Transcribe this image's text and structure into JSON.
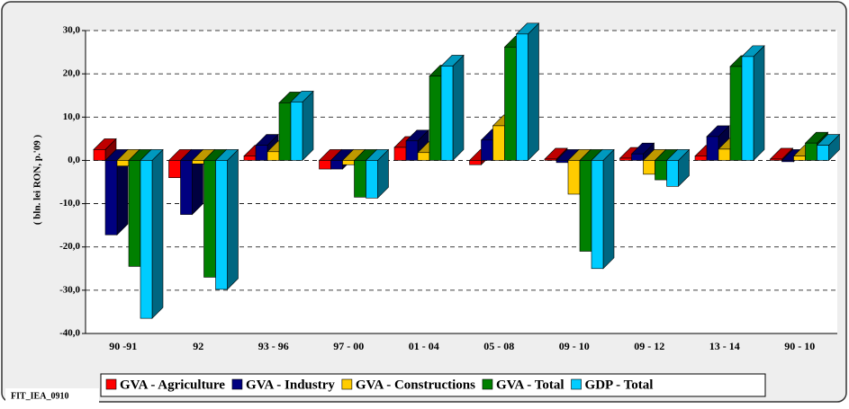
{
  "chart_data": {
    "type": "bar3d",
    "y_label": "( bln. lei RON, p.'09 )",
    "footnote": "FIT_IEA_0910",
    "categories": [
      "90 -91",
      "92",
      "93 - 96",
      "97 - 00",
      "01 - 04",
      "05 - 08",
      "09 - 10",
      "09 - 12",
      "13 - 14",
      "90 - 10"
    ],
    "series": [
      {
        "name": "GVA - Agriculture",
        "color": "#ff0000",
        "values": [
          2.5,
          -4,
          1,
          -2,
          3,
          -1,
          0.3,
          0.5,
          1,
          0.3
        ]
      },
      {
        "name": "GVA - Industry",
        "color": "#000080",
        "values": [
          -17.2,
          -12.5,
          3.5,
          -2,
          4.5,
          4.7,
          -0.5,
          1.5,
          5.5,
          -0.3
        ]
      },
      {
        "name": "GVA - Constructions",
        "color": "#ffcc00",
        "values": [
          -1.3,
          -0.8,
          2,
          -1,
          1.8,
          8,
          -7.8,
          -3.2,
          2.6,
          1
        ]
      },
      {
        "name": "GVA - Total",
        "color": "#008000",
        "values": [
          -24.5,
          -27,
          13.3,
          -8.5,
          19.5,
          26.2,
          -21,
          -4.5,
          21.7,
          4
        ]
      },
      {
        "name": "GDP - Total",
        "color": "#00ccff",
        "values": [
          -36.5,
          -29.8,
          13.5,
          -8.7,
          21.8,
          29.2,
          -25,
          -6,
          24,
          3.5
        ]
      }
    ],
    "ylim": [
      -40,
      30
    ],
    "yticks": [
      {
        "value": -40,
        "label": "-40,0"
      },
      {
        "value": -30,
        "label": "-30,0"
      },
      {
        "value": -20,
        "label": "-20,0"
      },
      {
        "value": -10,
        "label": "-10,0"
      },
      {
        "value": 0,
        "label": "0,0"
      },
      {
        "value": 10,
        "label": "10,0"
      },
      {
        "value": 20,
        "label": "20,0"
      },
      {
        "value": 30,
        "label": "30,0"
      }
    ],
    "grid": true
  }
}
